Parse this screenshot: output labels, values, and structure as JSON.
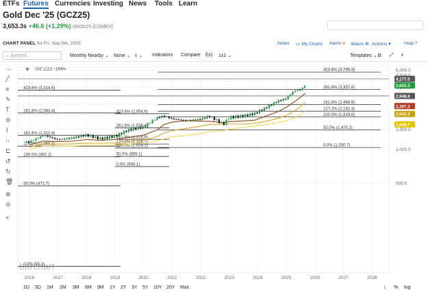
{
  "nav": {
    "tabs": [
      "ETFs",
      "Futures",
      "Currencies",
      "Investing",
      "News",
      "Tools",
      "Learn"
    ],
    "active": "Futures"
  },
  "quote": {
    "title": "Gold Dec '25 (GCZ25)",
    "last": "3,653.3s",
    "change": "+46.6 (+1.29%)",
    "timestamp": "09/05/25 [COMEX]"
  },
  "panel": {
    "label": "CHART PANEL",
    "sub": "for Fri, Sep 5th, 2025",
    "notes": "Notes",
    "my_charts": "My Charts",
    "alerts": "Alerts",
    "watch": "Watch",
    "actions": "Actions",
    "help": "Help"
  },
  "toolbar": {
    "symbol_placeholder": "Symbol...",
    "period": "Monthly Nearby",
    "none": "None",
    "indicators": "Indicators",
    "compare": "Compare",
    "fx": "f(x)",
    "ratio": "1x1",
    "templates": "Templates"
  },
  "symbol_label": "GCZ22 -1Mn-",
  "watermark": "barchart",
  "colors": {
    "up": "#1e9e3c",
    "down": "#111111",
    "fib": "#333333",
    "ma1": "#8b4513",
    "ma2": "#daa520",
    "ma3": "#f2d94e",
    "accent": "#1a5fb4"
  },
  "chart_data": {
    "type": "candlestick",
    "x_ticks": [
      "2016",
      "2017",
      "2018",
      "2019",
      "2020",
      "2021",
      "2022",
      "2023",
      "2024",
      "2025",
      "2026",
      "2027",
      "2028"
    ],
    "y_ticks": [
      "5,000.0",
      "4,500.0",
      "4,000.0",
      "3,500.0",
      "3,000.0",
      "2,500.0",
      "2,000.0",
      "1,500.0",
      "1,000.0",
      "500.0"
    ],
    "ylim": [
      0,
      5000
    ],
    "scale": "log",
    "price_tags": [
      {
        "label": "4,177.5",
        "value": 4177.5,
        "color": "#555555"
      },
      {
        "label": "3,653.3",
        "value": 3653.3,
        "color": "#1e9e3c"
      },
      {
        "label": "2,948.8",
        "value": 2948.8,
        "color": "#555555"
      },
      {
        "label": "2,397.3",
        "value": 2397.3,
        "color": "#b23a1e"
      },
      {
        "label": "2,043.3",
        "value": 2043.3,
        "color": "#c8a000"
      },
      {
        "label": "1,649.7",
        "value": 1649.7,
        "color": "#e6c400"
      }
    ],
    "fib_right": [
      {
        "label": "423.6% (4,795.9)",
        "value": 4795.9
      },
      {
        "label": "261.8% (3,357.8)",
        "value": 3357.8
      },
      {
        "label": "161.8% (2,468.9)",
        "value": 2468.9
      },
      {
        "label": "127.2% (2,161.4)",
        "value": 2161.4
      },
      {
        "label": "100.0% (1,919.6)",
        "value": 1919.6
      },
      {
        "label": "50.0% (1,475.2)",
        "value": 1475.2
      },
      {
        "label": "0.0% (1,030.7)",
        "value": 1030.7
      }
    ],
    "fib_mid": [
      {
        "label": "423.6% (2,054.6)",
        "value": 2054.6
      },
      {
        "label": "261.8% (1,536.4)",
        "value": 1536.4
      },
      {
        "label": "161.8% (1,216.9)",
        "value": 1216.9
      },
      {
        "label": "127.2% (1,106.2)",
        "value": 1106.2
      },
      {
        "label": "100.0% (1,019.1)",
        "value": 1019.1
      },
      {
        "label": "50.0% (859.1)",
        "value": 859.1
      },
      {
        "label": "0.0% (699.1)",
        "value": 699.1
      }
    ],
    "fib_left": [
      {
        "label": "423.6% (3,314.5)",
        "value": 3314.5
      },
      {
        "label": "261.8% (2,083.4)",
        "value": 2083.4
      },
      {
        "label": "161.8% (1,322.4)",
        "value": 1322.4
      },
      {
        "label": "127.2% (1,059.2)",
        "value": 1059.2
      },
      {
        "label": "100.0% (852.2)",
        "value": 852.2
      },
      {
        "label": "50.0% (471.7)",
        "value": 471.7
      },
      {
        "label": "0.0% (91.3)",
        "value": 91.3
      }
    ],
    "closes": [
      {
        "t": 2016.0,
        "v": 1150
      },
      {
        "t": 2016.5,
        "v": 1320
      },
      {
        "t": 2017.0,
        "v": 1210
      },
      {
        "t": 2017.5,
        "v": 1250
      },
      {
        "t": 2018.0,
        "v": 1330
      },
      {
        "t": 2018.5,
        "v": 1230
      },
      {
        "t": 2019.0,
        "v": 1300
      },
      {
        "t": 2019.5,
        "v": 1480
      },
      {
        "t": 2020.0,
        "v": 1560
      },
      {
        "t": 2020.5,
        "v": 1900
      },
      {
        "t": 2020.7,
        "v": 1960
      },
      {
        "t": 2021.0,
        "v": 1850
      },
      {
        "t": 2021.5,
        "v": 1780
      },
      {
        "t": 2022.0,
        "v": 1830
      },
      {
        "t": 2022.3,
        "v": 1950
      },
      {
        "t": 2022.8,
        "v": 1650
      },
      {
        "t": 2023.0,
        "v": 1900
      },
      {
        "t": 2023.5,
        "v": 1960
      },
      {
        "t": 2023.9,
        "v": 2060
      },
      {
        "t": 2024.3,
        "v": 2330
      },
      {
        "t": 2024.7,
        "v": 2650
      },
      {
        "t": 2025.0,
        "v": 2800
      },
      {
        "t": 2025.3,
        "v": 3300
      },
      {
        "t": 2025.5,
        "v": 3350
      },
      {
        "t": 2025.67,
        "v": 3653.3
      }
    ]
  },
  "bottom": {
    "ranges": [
      "1D",
      "5D",
      "1M",
      "2M",
      "3M",
      "6M",
      "9M",
      "1Y",
      "2Y",
      "3Y",
      "5Y",
      "10Y",
      "20Y",
      "Max"
    ],
    "pct": "%",
    "log": "log"
  }
}
